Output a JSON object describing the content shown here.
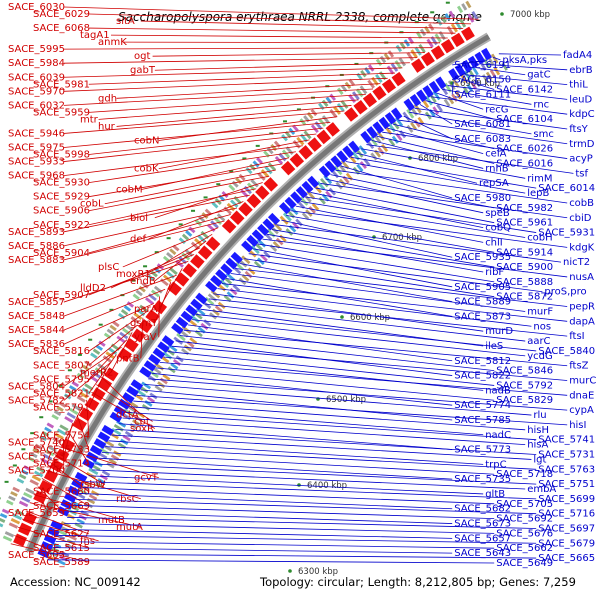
{
  "title": "Saccharopolyspora erythraea NRRL 2338, complete genome",
  "footer": {
    "accession": "Accession: NC_009142",
    "stats": "Topology: circular; Length: 8,212,805 bp; Genes: 7,259"
  },
  "colors": {
    "left_labels": "#d00000",
    "right_labels": "#0000cc",
    "backbone": "#888888",
    "tick": "#2e8b2e"
  },
  "ticks": [
    "7000 kbp",
    "6900 kbp",
    "6800 kbp",
    "6700 kbp",
    "6600 kbp",
    "6500 kbp",
    "6400 kbp",
    "6300 kbp"
  ],
  "left_labels": [
    "SACE_6030",
    "SACE_6029",
    "sitA",
    "SACE_6068",
    "tagA1",
    "anmK",
    "SACE_5995",
    "ogt",
    "SACE_5984",
    "gabT",
    "SACE_6039",
    "SACE_5981",
    "SACE_5970",
    "gdh",
    "SACE_6032",
    "SACE_5959",
    "mtr",
    "hur",
    "SACE_5946",
    "cobN",
    "SACE_5975",
    "SACE_5998",
    "SACE_5933",
    "cobK",
    "SACE_5968",
    "SACE_5930",
    "cobM",
    "SACE_5929",
    "cobL",
    "SACE_5906",
    "biol",
    "SACE_5922",
    "SACE_5893",
    "def",
    "SACE_5886",
    "SACE_5904",
    "SACE_5883",
    "plsC",
    "moxR1",
    "endB",
    "lldD2",
    "SACE_5907",
    "SACE_5857",
    "parA",
    "SACE_5848",
    "gsmT",
    "SACE_5844",
    "yfaV",
    "SACE_5836",
    "SACE_5816",
    "pntB",
    "SACE_5807",
    "merR2",
    "SACE_5795",
    "SACE_5804",
    "SACE_5821",
    "SACE_5782",
    "SACE_5791",
    "dctA",
    "cpt",
    "soxR",
    "SACE_5754",
    "SACE_5740",
    "SACE_5733",
    "SACE_5723",
    "SACE_5714",
    "SACE_5700",
    "gcvT",
    "rsbW",
    "SACE_5680",
    "rbsC",
    "SACE_5669",
    "SACE_5659",
    "mutB",
    "mutA",
    "SACE_5627",
    "fhs",
    "SACE_5615",
    "SACE_5605",
    "SACE_5589"
  ],
  "right_labels": [
    "fadA4",
    "pksA,pks",
    "SACE_6191",
    "ebrB",
    "gatC",
    "SACE_6150",
    "thiL",
    "SACE_6142",
    "SACE_6111",
    "leuD",
    "rnc",
    "recG",
    "kdpC",
    "SACE_6104",
    "SACE_6081",
    "ftsY",
    "smc",
    "SACE_6083",
    "trmD",
    "SACE_6026",
    "celA",
    "acyP",
    "SACE_6016",
    "rnhB",
    "tsf",
    "rimM",
    "repSA",
    "SACE_6014",
    "lepB",
    "SACE_5980",
    "cobB",
    "SACE_5982",
    "speB",
    "cbiD",
    "SACE_5961",
    "cobQ",
    "SACE_5931",
    "cobH",
    "chlI",
    "kdgK",
    "SACE_5914",
    "SACE_5935",
    "nicT2",
    "SACE_5900",
    "ribF",
    "nusA",
    "SACE_5888",
    "SACE_5905",
    "proS,pro",
    "SACE_5872",
    "SACE_5889",
    "pepR",
    "murF",
    "SACE_5873",
    "dapA",
    "nos",
    "murD",
    "ftsI",
    "aarC",
    "ileS",
    "SACE_5840",
    "ycdG",
    "SACE_5812",
    "ftsZ",
    "SACE_5846",
    "SACE_5822",
    "murC",
    "SACE_5792",
    "nadB",
    "dnaE",
    "SACE_5829",
    "SACE_5774",
    "cypA",
    "rlu",
    "SACE_5785",
    "hisI",
    "hisH",
    "nadC",
    "SACE_5741",
    "hisA",
    "SACE_5773",
    "SACE_5731",
    "lgt",
    "trpC",
    "SACE_5763",
    "SACE_5718",
    "SACE_5735",
    "SACE_5751",
    "embA",
    "gltB",
    "SACE_5699",
    "SACE_5705",
    "SACE_5682",
    "SACE_5716",
    "SACE_5692",
    "SACE_5673",
    "SACE_5697",
    "SACE_5676",
    "SACE_5657",
    "SACE_5679",
    "SACE_5662",
    "SACE_5643",
    "SACE_5665",
    "SACE_5649"
  ]
}
